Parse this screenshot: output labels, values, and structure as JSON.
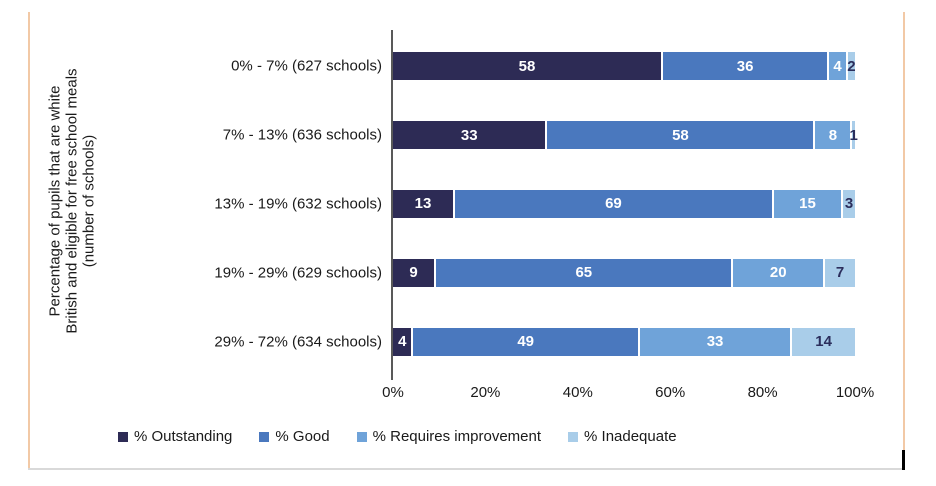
{
  "page": {
    "background": "#ffffff"
  },
  "frame": {
    "side_border_color": "#F2C9A6",
    "bottom_border_color": "#D9D9D9",
    "cursor_color": "#000000"
  },
  "chart_data": {
    "type": "bar",
    "orientation": "horizontal",
    "stacked": true,
    "title": "",
    "y_axis_label": "Percentage of pupils that are white\nBritish and eligible for free school meals\n(number of schools)",
    "categories": [
      "0% - 7% (627 schools)",
      "7% - 13% (636 schools)",
      "13% - 19% (632 schools)",
      "19% - 29% (629 schools)",
      "29% - 72% (634 schools)"
    ],
    "series": [
      {
        "name": "% Outstanding",
        "color": "#2D2B55",
        "label_color": "#FFFFFF",
        "values": [
          58,
          33,
          13,
          9,
          4
        ]
      },
      {
        "name": "% Good",
        "color": "#4A78BE",
        "label_color": "#FFFFFF",
        "values": [
          36,
          58,
          69,
          65,
          49
        ]
      },
      {
        "name": "% Requires improvement",
        "color": "#6FA3D9",
        "label_color": "#FFFFFF",
        "values": [
          4,
          8,
          15,
          20,
          33
        ]
      },
      {
        "name": "% Inadequate",
        "color": "#A9CDE9",
        "label_color": "#2B2E5C",
        "values": [
          2,
          1,
          3,
          7,
          14
        ]
      }
    ],
    "x_ticks": [
      "0%",
      "20%",
      "40%",
      "60%",
      "80%",
      "100%"
    ],
    "xlim": [
      0,
      100
    ],
    "grid": false,
    "legend_position": "bottom",
    "axis_color": "#595959",
    "text_color": "#1a1a1a"
  }
}
